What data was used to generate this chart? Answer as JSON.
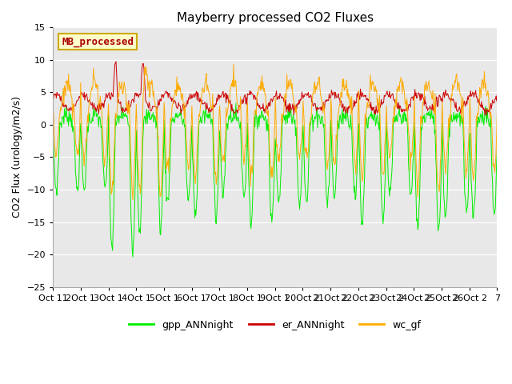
{
  "title": "Mayberry processed CO2 Fluxes",
  "ylabel": "CO2 Flux (urology/m2/s)",
  "xtick_labels": [
    "Oct 11",
    "2Oct 1",
    "3Oct 1",
    "4Oct 1",
    "5Oct 1",
    "6Oct 1",
    "7Oct 1",
    "8Oct 1",
    "9Oct 1",
    "20Oct 2",
    "21Oct 2",
    "22Oct 2",
    "23Oct 2",
    "24Oct 2",
    "25Oct 2",
    "26Oct 2",
    "7"
  ],
  "ylim": [
    -25,
    15
  ],
  "yticks": [
    -25,
    -20,
    -15,
    -10,
    -5,
    0,
    5,
    10,
    15
  ],
  "legend_label": "MB_processed",
  "series_colors": {
    "gpp": "#00ee00",
    "er": "#cc0000",
    "wc": "#ffaa00"
  },
  "series_names": [
    "gpp_ANNnight",
    "er_ANNnight",
    "wc_gf"
  ],
  "bg_color": "#e8e8e8",
  "legend_box_color": "#ffffcc",
  "legend_box_edge": "#ccaa00"
}
